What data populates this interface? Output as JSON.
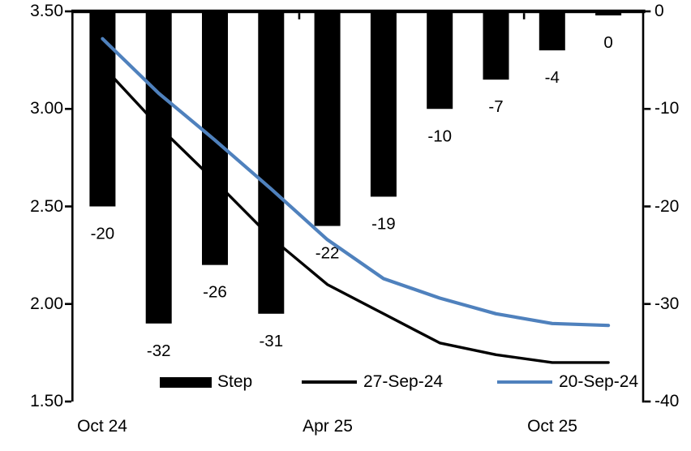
{
  "chart_data": {
    "type": "combo",
    "title": "",
    "categories": [
      "Oct 24",
      "",
      "",
      "",
      "Apr 25",
      "",
      "",
      "",
      "Oct 25",
      ""
    ],
    "x_tick_labels": [
      {
        "label": "Oct 24",
        "category_index": 0
      },
      {
        "label": "Apr 25",
        "category_index": 4
      },
      {
        "label": "Oct 25",
        "category_index": 8
      }
    ],
    "series": [
      {
        "name": "Step",
        "type": "bar",
        "axis": "right",
        "color": "#000000",
        "values": [
          -20,
          -32,
          -26,
          -31,
          -22,
          -19,
          -10,
          -7,
          -4,
          0
        ],
        "data_labels": [
          "-20",
          "-32",
          "-26",
          "-31",
          "-22",
          "-19",
          "-10",
          "-7",
          "-4",
          "0"
        ]
      },
      {
        "name": "27-Sep-24",
        "type": "line",
        "axis": "left",
        "color": "#000000",
        "values": [
          3.22,
          2.91,
          2.63,
          2.34,
          2.1,
          1.95,
          1.8,
          1.74,
          1.7,
          1.7
        ]
      },
      {
        "name": "20-Sep-24",
        "type": "line",
        "axis": "left",
        "color": "#4F81BD",
        "values": [
          3.36,
          3.08,
          2.84,
          2.59,
          2.33,
          2.13,
          2.03,
          1.95,
          1.9,
          1.89
        ]
      }
    ],
    "left_axis": {
      "min": 1.5,
      "max": 3.5,
      "tick_labels": [
        "3.50",
        "3.00",
        "2.50",
        "2.00",
        "1.50"
      ]
    },
    "right_axis": {
      "min": -40,
      "max": 0,
      "tick_labels": [
        "0",
        "-10",
        "-20",
        "-30",
        "-40"
      ]
    },
    "legend": {
      "position": "bottom",
      "entries": [
        "Step",
        "27-Sep-24",
        "20-Sep-24"
      ]
    },
    "grid": false,
    "background": "#ffffff",
    "bar_color": "#000000",
    "line_27sep_color": "#000000",
    "line_20sep_color": "#4F81BD"
  }
}
